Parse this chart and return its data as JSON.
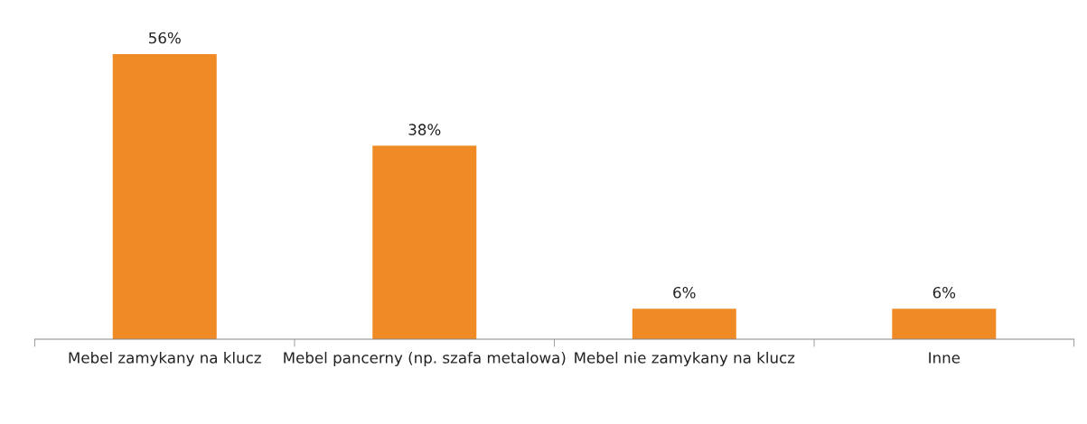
{
  "chart_data": {
    "type": "bar",
    "categories": [
      "Mebel zamykany na klucz",
      "Mebel pancerny (np. szafa metalowa)",
      "Mebel nie zamykany na klucz",
      "Inne"
    ],
    "values": [
      56,
      38,
      6,
      6
    ],
    "value_labels": [
      "56%",
      "38%",
      "6%",
      "6%"
    ],
    "color": "#f08a24",
    "grid": false,
    "legend": false
  }
}
